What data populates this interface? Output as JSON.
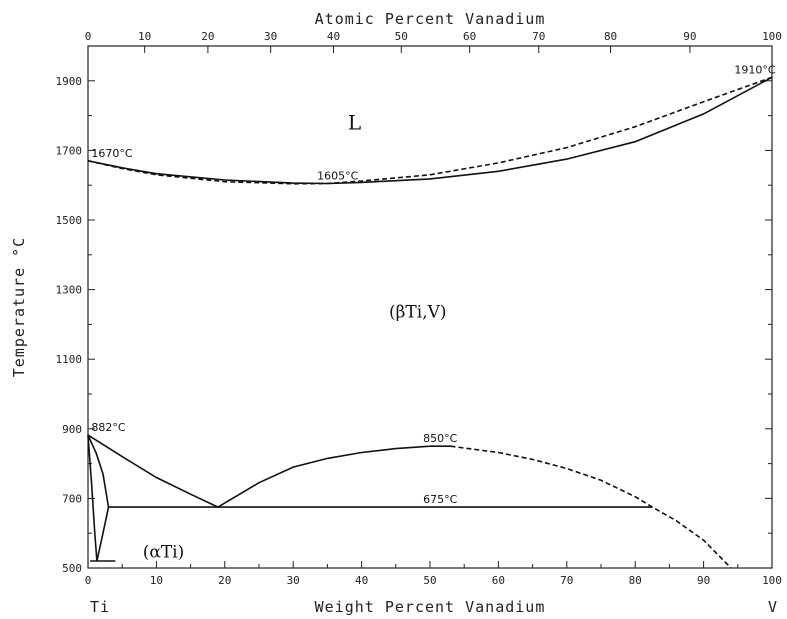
{
  "chart_data": {
    "type": "line",
    "title": "",
    "xlabel": "Weight Percent Vanadium",
    "x2label": "Atomic Percent Vanadium",
    "ylabel": "Temperature °C",
    "xlim": [
      0,
      100
    ],
    "ylim": [
      500,
      2000
    ],
    "x_ticks": [
      0,
      10,
      20,
      30,
      40,
      50,
      60,
      70,
      80,
      90,
      100
    ],
    "x_tick_labels": [
      "0",
      "10",
      "20",
      "30",
      "40",
      "50",
      "60",
      "70",
      "80",
      "90",
      "100"
    ],
    "x2_ticks": [
      0,
      8.28,
      17.53,
      26.7,
      35.9,
      45.8,
      55.8,
      65.9,
      76.4,
      88.0,
      100
    ],
    "x2_tick_labels": [
      "0",
      "10",
      "20",
      "30",
      "40",
      "50",
      "60",
      "70",
      "80",
      "90",
      "100"
    ],
    "y_ticks": [
      500,
      700,
      900,
      1100,
      1300,
      1500,
      1700,
      1900
    ],
    "y_tick_labels": [
      "500",
      "700",
      "900",
      "1100",
      "1300",
      "1500",
      "1700",
      "1900"
    ],
    "endpoint_labels": {
      "left": "Ti",
      "right": "V"
    },
    "grid": false,
    "series": [
      {
        "style": "solid",
        "points": [
          [
            0,
            1670
          ],
          [
            5,
            1650
          ],
          [
            10,
            1633
          ],
          [
            20,
            1615
          ],
          [
            30,
            1606
          ],
          [
            35,
            1605
          ],
          [
            40,
            1608
          ],
          [
            50,
            1618
          ],
          [
            60,
            1640
          ],
          [
            70,
            1675
          ],
          [
            80,
            1725
          ],
          [
            90,
            1805
          ],
          [
            100,
            1910
          ]
        ]
      },
      {
        "style": "dashed",
        "points": [
          [
            0,
            1670
          ],
          [
            5,
            1648
          ],
          [
            10,
            1630
          ],
          [
            20,
            1610
          ],
          [
            30,
            1604
          ],
          [
            35,
            1605
          ],
          [
            40,
            1612
          ],
          [
            50,
            1630
          ],
          [
            60,
            1664
          ],
          [
            70,
            1708
          ],
          [
            80,
            1768
          ],
          [
            90,
            1840
          ],
          [
            100,
            1910
          ]
        ]
      },
      {
        "style": "solid",
        "points": [
          [
            0,
            882
          ],
          [
            5,
            820
          ],
          [
            10,
            760
          ],
          [
            15,
            712
          ],
          [
            19,
            675
          ]
        ]
      },
      {
        "style": "solid",
        "points": [
          [
            19,
            675
          ],
          [
            25,
            745
          ],
          [
            30,
            790
          ],
          [
            35,
            815
          ],
          [
            40,
            832
          ],
          [
            45,
            843
          ],
          [
            50,
            850
          ],
          [
            53,
            850
          ]
        ]
      },
      {
        "style": "dashed",
        "points": [
          [
            53,
            850
          ],
          [
            60,
            832
          ],
          [
            65,
            812
          ],
          [
            70,
            786
          ],
          [
            75,
            752
          ],
          [
            80,
            705
          ],
          [
            82.5,
            675
          ],
          [
            86,
            636
          ],
          [
            90,
            580
          ],
          [
            94,
            500
          ]
        ]
      },
      {
        "style": "solid",
        "points": [
          [
            3,
            675
          ],
          [
            82.5,
            675
          ]
        ]
      },
      {
        "style": "solid",
        "points": [
          [
            0,
            882
          ],
          [
            1.2,
            830
          ],
          [
            2.2,
            770
          ],
          [
            3,
            675
          ]
        ]
      },
      {
        "style": "solid",
        "points": [
          [
            3,
            675
          ],
          [
            2.2,
            600
          ],
          [
            1.3,
            520
          ]
        ]
      },
      {
        "style": "solid",
        "points": [
          [
            0,
            882
          ],
          [
            0.5,
            750
          ],
          [
            1,
            600
          ],
          [
            1.3,
            520
          ]
        ]
      },
      {
        "style": "solid",
        "points": [
          [
            0.3,
            520
          ],
          [
            4,
            520
          ]
        ]
      }
    ],
    "annotations": [
      {
        "text": "1670°C",
        "x": 0.5,
        "y": 1670
      },
      {
        "text": "1910°C",
        "x": 94.5,
        "y": 1910
      },
      {
        "text": "1605°C",
        "x": 33.5,
        "y": 1605
      },
      {
        "text": "882°C",
        "x": 0.5,
        "y": 882
      },
      {
        "text": "850°C",
        "x": 49,
        "y": 850
      },
      {
        "text": "675°C",
        "x": 49,
        "y": 675
      }
    ],
    "phase_labels": [
      {
        "text": "L",
        "x": 38,
        "y": 1760
      },
      {
        "text": "(βTi,V)",
        "x": 44,
        "y": 1220
      },
      {
        "text": "(αTi)",
        "x": 8,
        "y": 530
      }
    ]
  }
}
